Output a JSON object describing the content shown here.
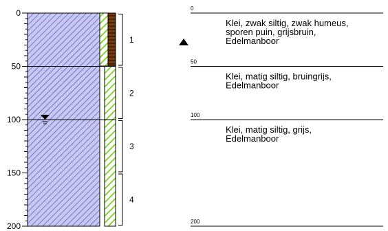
{
  "depth_axis": {
    "ticks": [
      0,
      50,
      100,
      150,
      200
    ],
    "range": [
      0,
      200
    ]
  },
  "samples": [
    {
      "label": "1",
      "from": 0,
      "to": 50
    },
    {
      "label": "2",
      "from": 50,
      "to": 100
    },
    {
      "label": "3",
      "from": 100,
      "to": 150
    },
    {
      "label": "4",
      "from": 150,
      "to": 200
    }
  ],
  "layers": [
    {
      "top": 0,
      "top_label": "0",
      "desc_lines": [
        "Klei, zwak siltig, zwak humeus,",
        "sporen puin, grijsbruin,",
        "Edelmanboor"
      ]
    },
    {
      "top": 50,
      "top_label": "50",
      "desc_lines": [
        "Klei, matig siltig, bruingrijs,",
        "Edelmanboor"
      ]
    },
    {
      "top": 100,
      "top_label": "100",
      "desc_lines": [
        "Klei, matig siltig, grijs,",
        "Edelmanboor"
      ]
    }
  ],
  "bottom_label": "200",
  "groundwater_depth": 100,
  "marker_symbol": "triangle-marker",
  "colors": {
    "hatch_main": "#3c3cc8",
    "fill_main": "#c8c8ee",
    "hatch_green": "#76d11a",
    "fill_brown": "#7a3a10"
  }
}
